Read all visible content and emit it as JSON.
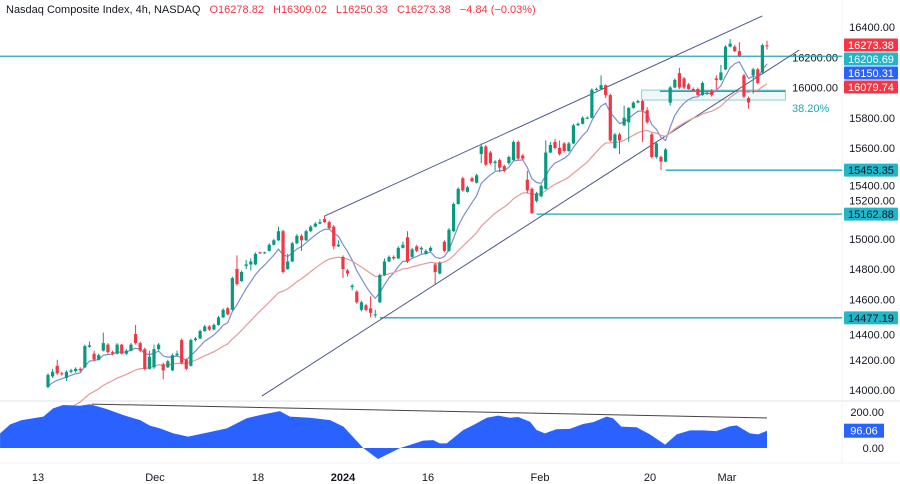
{
  "header": {
    "symbol": "Nasdaq Composite Index, 4h, NASDAQ",
    "open": "O16278.82",
    "high": "H16309.02",
    "low": "L16250.33",
    "close": "C16273.38",
    "change": "−4.84 (−0.03%)"
  },
  "colors": {
    "up": "#089981",
    "down": "#f23645",
    "ma_fast": "#7a8fd1",
    "ma_slow": "#e39a9a",
    "channel": "#4a5887",
    "level": "#22a7b4",
    "oscillator": "#2962ff"
  },
  "chart_data": [
    {
      "type": "candlestick",
      "title": "Nasdaq Composite Index, 4h, NASDAQ",
      "y_ticks": [
        "14000.00",
        "14200.00",
        "14400.00",
        "14600.00",
        "14800.00",
        "15000.00",
        "15200.00",
        "15400.00",
        "15600.00",
        "15800.00",
        "16000.00",
        "16200.00",
        "16400.00"
      ],
      "ylim": [
        14000,
        16400
      ],
      "x_tick_labels": [
        "13",
        "Dec",
        "18",
        "2024",
        "16",
        "Feb",
        "20",
        "Mar"
      ],
      "candles": [
        [
          14020,
          14110,
          14010,
          14100
        ],
        [
          14090,
          14140,
          14080,
          14120
        ],
        [
          14160,
          14200,
          14100,
          14110
        ],
        [
          14110,
          14120,
          14095,
          14105
        ],
        [
          14080,
          14130,
          14060,
          14120
        ],
        [
          14120,
          14140,
          14110,
          14130
        ],
        [
          14125,
          14150,
          14115,
          14140
        ],
        [
          14140,
          14150,
          14120,
          14130
        ],
        [
          14150,
          14300,
          14145,
          14290
        ],
        [
          14285,
          14320,
          14280,
          14295
        ],
        [
          14240,
          14260,
          14190,
          14200
        ],
        [
          14200,
          14240,
          14195,
          14230
        ],
        [
          14260,
          14380,
          14255,
          14310
        ],
        [
          14300,
          14310,
          14240,
          14250
        ],
        [
          14250,
          14260,
          14230,
          14240
        ],
        [
          14240,
          14310,
          14235,
          14300
        ],
        [
          14300,
          14305,
          14235,
          14240
        ],
        [
          14240,
          14270,
          14230,
          14260
        ],
        [
          14260,
          14310,
          14255,
          14300
        ],
        [
          14370,
          14430,
          14300,
          14310
        ],
        [
          14310,
          14320,
          14250,
          14260
        ],
        [
          14270,
          14280,
          14130,
          14140
        ],
        [
          14140,
          14260,
          14135,
          14220
        ],
        [
          14150,
          14300,
          14140,
          14270
        ],
        [
          14270,
          14310,
          14260,
          14300
        ],
        [
          14170,
          14180,
          14070,
          14130
        ],
        [
          14150,
          14200,
          14145,
          14190
        ],
        [
          14130,
          14240,
          14125,
          14230
        ],
        [
          14230,
          14260,
          14220,
          14240
        ],
        [
          14330,
          14340,
          14170,
          14180
        ],
        [
          14200,
          14210,
          14130,
          14140
        ],
        [
          14160,
          14340,
          14155,
          14330
        ],
        [
          14330,
          14350,
          14320,
          14340
        ],
        [
          14340,
          14400,
          14335,
          14390
        ],
        [
          14390,
          14430,
          14385,
          14420
        ],
        [
          14420,
          14430,
          14390,
          14400
        ],
        [
          14400,
          14440,
          14395,
          14430
        ],
        [
          14430,
          14490,
          14425,
          14480
        ],
        [
          14480,
          14540,
          14475,
          14530
        ],
        [
          14540,
          14550,
          14495,
          14500
        ],
        [
          14530,
          14750,
          14525,
          14740
        ],
        [
          14800,
          14890,
          14690,
          14700
        ],
        [
          14720,
          14790,
          14715,
          14780
        ],
        [
          14820,
          14860,
          14800,
          14830
        ],
        [
          14830,
          14870,
          14790,
          14850
        ],
        [
          14830,
          14910,
          14825,
          14900
        ],
        [
          14910,
          14915,
          14900,
          14905
        ],
        [
          14905,
          14915,
          14900,
          14910
        ],
        [
          14920,
          14970,
          14915,
          14960
        ],
        [
          14960,
          15000,
          14955,
          14990
        ],
        [
          14990,
          15080,
          14985,
          15050
        ],
        [
          15050,
          15060,
          14770,
          14780
        ],
        [
          14800,
          14900,
          14795,
          14850
        ],
        [
          14850,
          14980,
          14845,
          14970
        ],
        [
          14970,
          15030,
          14965,
          15020
        ],
        [
          15020,
          15030,
          14920,
          14990
        ],
        [
          14990,
          15060,
          14985,
          15050
        ],
        [
          15050,
          15090,
          15045,
          15080
        ],
        [
          15080,
          15110,
          15075,
          15100
        ],
        [
          15100,
          15130,
          15095,
          15110
        ],
        [
          15130,
          15150,
          15105,
          15110
        ],
        [
          15110,
          15120,
          15060,
          15070
        ],
        [
          15080,
          15090,
          14930,
          14950
        ],
        [
          14950,
          14990,
          14945,
          14960
        ],
        [
          14880,
          14890,
          14740,
          14800
        ],
        [
          14790,
          14800,
          14750,
          14770
        ],
        [
          14680,
          14700,
          14660,
          14690
        ],
        [
          14650,
          14660,
          14570,
          14580
        ],
        [
          14530,
          14590,
          14520,
          14580
        ],
        [
          14560,
          14570,
          14520,
          14530
        ],
        [
          14540,
          14620,
          14480,
          14510
        ],
        [
          14500,
          14530,
          14477.19,
          14500
        ],
        [
          14580,
          14770,
          14575,
          14760
        ],
        [
          14760,
          14870,
          14755,
          14850
        ],
        [
          14850,
          14890,
          14845,
          14880
        ],
        [
          14880,
          14890,
          14860,
          14870
        ],
        [
          14870,
          14950,
          14865,
          14940
        ],
        [
          14940,
          14980,
          14935,
          14960
        ],
        [
          15010,
          15050,
          14840,
          14850
        ],
        [
          14880,
          14940,
          14875,
          14930
        ],
        [
          14950,
          14960,
          14910,
          14920
        ],
        [
          14930,
          14950,
          14900,
          14940
        ],
        [
          14900,
          14930,
          14895,
          14920
        ],
        [
          14920,
          14950,
          14915,
          14940
        ],
        [
          14830,
          14840,
          14700,
          14780
        ],
        [
          14770,
          14850,
          14765,
          14840
        ],
        [
          14980,
          14990,
          14910,
          14920
        ],
        [
          14920,
          15070,
          14915,
          15060
        ],
        [
          15050,
          15240,
          15045,
          15230
        ],
        [
          15230,
          15340,
          15225,
          15330
        ],
        [
          15400,
          15410,
          15310,
          15320
        ],
        [
          15310,
          15350,
          15305,
          15340
        ],
        [
          15400,
          15410,
          15375,
          15380
        ],
        [
          15370,
          15430,
          15365,
          15420
        ],
        [
          15560,
          15630,
          15500,
          15610
        ],
        [
          15610,
          15620,
          15480,
          15490
        ],
        [
          15570,
          15580,
          15490,
          15500
        ],
        [
          15500,
          15520,
          15450,
          15510
        ],
        [
          15520,
          15530,
          15440,
          15470
        ],
        [
          15480,
          15490,
          15440,
          15450
        ],
        [
          15500,
          15550,
          15490,
          15540
        ],
        [
          15520,
          15650,
          15515,
          15640
        ],
        [
          15640,
          15650,
          15520,
          15530
        ],
        [
          15550,
          15560,
          15520,
          15530
        ],
        [
          15390,
          15450,
          15300,
          15320
        ],
        [
          15330,
          15340,
          15162.88,
          15170
        ],
        [
          15250,
          15310,
          15240,
          15300
        ],
        [
          15280,
          15360,
          15275,
          15350
        ],
        [
          15330,
          15650,
          15325,
          15570
        ],
        [
          15570,
          15640,
          15565,
          15620
        ],
        [
          15640,
          15660,
          15590,
          15600
        ],
        [
          15600,
          15650,
          15550,
          15560
        ],
        [
          15630,
          15640,
          15570,
          15580
        ],
        [
          15580,
          15640,
          15575,
          15630
        ],
        [
          15630,
          15760,
          15625,
          15750
        ],
        [
          15750,
          15770,
          15745,
          15760
        ],
        [
          15760,
          15810,
          15755,
          15800
        ],
        [
          15800,
          15810,
          15790,
          15800
        ],
        [
          15800,
          15995,
          15795,
          15985
        ],
        [
          15985,
          16000,
          15980,
          15990
        ],
        [
          15990,
          16080,
          15985,
          16015
        ],
        [
          16015,
          16020,
          15930,
          15950
        ],
        [
          15950,
          15960,
          15640,
          15650
        ],
        [
          15600,
          15700,
          15595,
          15690
        ],
        [
          15690,
          15700,
          15560,
          15650
        ],
        [
          15750,
          15880,
          15745,
          15800
        ],
        [
          15770,
          15870,
          15640,
          15865
        ],
        [
          15865,
          15910,
          15860,
          15900
        ],
        [
          15900,
          15920,
          15895,
          15910
        ],
        [
          15910,
          15920,
          15640,
          15850
        ],
        [
          15850,
          15870,
          15760,
          15770
        ],
        [
          15690,
          15700,
          15530,
          15540
        ],
        [
          15540,
          15640,
          15530,
          15630
        ],
        [
          15540,
          15550,
          15453.35,
          15510
        ],
        [
          15510,
          15600,
          15505,
          15590
        ],
        [
          15900,
          16010,
          15880,
          16000
        ],
        [
          16000,
          16060,
          15995,
          16050
        ],
        [
          16095,
          16130,
          15990,
          16000
        ],
        [
          16060,
          16070,
          15990,
          16000
        ],
        [
          16020,
          16030,
          15985,
          15990
        ],
        [
          15990,
          16000,
          15975,
          15980
        ],
        [
          15990,
          16000,
          15945,
          15950
        ],
        [
          15950,
          16040,
          15945,
          16030
        ],
        [
          15960,
          15980,
          15950,
          15965
        ],
        [
          15980,
          15990,
          15940,
          15950
        ],
        [
          16060,
          16080,
          15990,
          16050
        ],
        [
          16050,
          16150,
          16045,
          16100
        ],
        [
          16120,
          16280,
          16115,
          16270
        ],
        [
          16270,
          16320,
          16265,
          16290
        ],
        [
          16270,
          16280,
          16235,
          16240
        ],
        [
          16240,
          16300,
          16200,
          16210
        ],
        [
          16080,
          16090,
          15930,
          15940
        ],
        [
          15930,
          15940,
          15860,
          15900
        ],
        [
          16080,
          16130,
          15960,
          16120
        ],
        [
          16120,
          16130,
          16020,
          16030
        ],
        [
          16100,
          16290,
          16095,
          16280
        ],
        [
          16278.82,
          16309.02,
          16250.33,
          16273.38
        ]
      ],
      "horizontal_levels": [
        {
          "value": 16206.69,
          "label": "16206.69",
          "from_bar": -11
        },
        {
          "value": 15453.35,
          "label": "15453.35",
          "from_bar": 134
        },
        {
          "value": 15162.88,
          "label": "15162.88",
          "from_bar": 106
        },
        {
          "value": 14477.19,
          "label": "14477.19",
          "from_bar": 72
        }
      ],
      "channel": {
        "upper": [
          [
            60,
            15150
          ],
          [
            155,
            16473
          ]
        ],
        "lower": [
          [
            46.4,
            13960
          ],
          [
            163,
            16248
          ]
        ]
      },
      "fib_zone": {
        "label": "38.20%",
        "top": 15983,
        "bottom": 15917,
        "level": 15975,
        "from_bar": 128.8,
        "to_bar": 160
      },
      "price_labels": [
        {
          "text": "16273.38",
          "color": "#f23645"
        },
        {
          "text": "16206.69",
          "color": "#22b6c9"
        },
        {
          "text": "16150.31",
          "color": "#2962ff"
        },
        {
          "text": "16079.74",
          "color": "#f23645"
        }
      ]
    },
    {
      "type": "area",
      "y_ticks": [
        "200.00",
        "0.00"
      ],
      "ylim": [
        -80,
        260
      ],
      "current_value": "96.06",
      "points": [
        [
          -10.4,
          81
        ],
        [
          -8.2,
          131
        ],
        [
          -5.7,
          155
        ],
        [
          -3.2,
          165
        ],
        [
          -1.0,
          174
        ],
        [
          1.1,
          220
        ],
        [
          3.3,
          239
        ],
        [
          6.9,
          235
        ],
        [
          9.1,
          243
        ],
        [
          12.7,
          217
        ],
        [
          16.3,
          183
        ],
        [
          20.0,
          155
        ],
        [
          22.1,
          124
        ],
        [
          24.3,
          109
        ],
        [
          27.2,
          81
        ],
        [
          30.4,
          63
        ],
        [
          34.4,
          85
        ],
        [
          38.8,
          109
        ],
        [
          43.1,
          165
        ],
        [
          46.7,
          187
        ],
        [
          50.3,
          205
        ],
        [
          52.5,
          174
        ],
        [
          56.8,
          168
        ],
        [
          61.2,
          155
        ],
        [
          64.1,
          119
        ],
        [
          68.4,
          0
        ],
        [
          71.6,
          -61
        ],
        [
          76.4,
          0
        ],
        [
          78.5,
          17
        ],
        [
          81.4,
          41
        ],
        [
          83.6,
          44
        ],
        [
          85.0,
          26
        ],
        [
          86.5,
          26
        ],
        [
          90.1,
          100
        ],
        [
          92.3,
          128
        ],
        [
          95.2,
          168
        ],
        [
          97.7,
          180
        ],
        [
          100.2,
          168
        ],
        [
          102.0,
          172
        ],
        [
          104.6,
          146
        ],
        [
          106.0,
          100
        ],
        [
          107.8,
          81
        ],
        [
          110.3,
          104
        ],
        [
          113.2,
          106
        ],
        [
          116.1,
          133
        ],
        [
          118.3,
          144
        ],
        [
          121.2,
          174
        ],
        [
          122.6,
          165
        ],
        [
          124.4,
          119
        ],
        [
          127.7,
          115
        ],
        [
          130.6,
          76
        ],
        [
          133.9,
          19
        ],
        [
          136.4,
          76
        ],
        [
          139.3,
          98
        ],
        [
          142.1,
          98
        ],
        [
          145.0,
          94
        ],
        [
          147.9,
          120
        ],
        [
          149.4,
          126
        ],
        [
          152.3,
          81
        ],
        [
          154.1,
          76
        ],
        [
          156,
          96.06
        ]
      ],
      "trendline": [
        [
          9.5,
          244
        ],
        [
          156,
          167
        ]
      ]
    }
  ]
}
